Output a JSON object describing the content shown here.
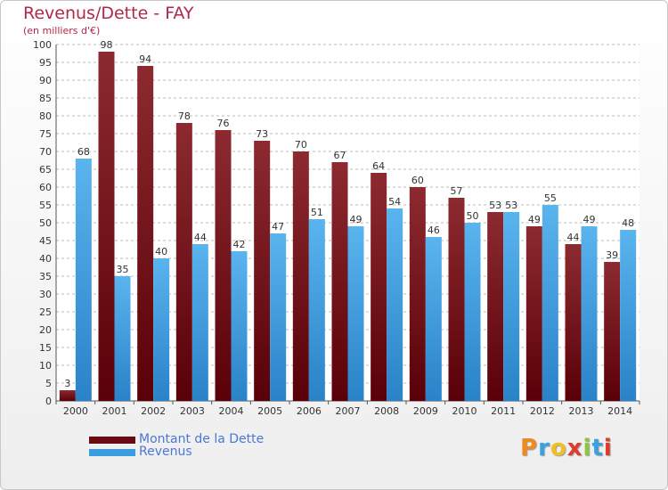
{
  "header": {
    "title": "Revenus/Dette - FAY",
    "subtitle": "(en milliers d'€)"
  },
  "legend": {
    "items": [
      {
        "label": "Montant de la Dette",
        "color": "#6b0a12"
      },
      {
        "label": "Revenus",
        "color": "#3a9de0"
      }
    ]
  },
  "logo": {
    "letters": [
      "P",
      "r",
      "o",
      "x",
      "i",
      "t",
      "i"
    ],
    "colors": [
      "#f08a1c",
      "#3aa0e0",
      "#f0c020",
      "#e03a2a",
      "#8cc63f",
      "#3aa0e0",
      "#e03a2a"
    ]
  },
  "chart_data": {
    "type": "bar",
    "title": "Revenus/Dette - FAY",
    "ylabel": "(en milliers d'€)",
    "xlabel": "",
    "categories": [
      "2000",
      "2001",
      "2002",
      "2003",
      "2004",
      "2005",
      "2006",
      "2007",
      "2008",
      "2009",
      "2010",
      "2011",
      "2012",
      "2013",
      "2014"
    ],
    "series": [
      {
        "name": "Montant de la Dette",
        "color": "#7a1a22",
        "values": [
          3,
          98,
          94,
          78,
          76,
          73,
          70,
          67,
          64,
          60,
          57,
          53,
          49,
          44,
          39
        ]
      },
      {
        "name": "Revenus",
        "color": "#4aaae8",
        "values": [
          68,
          35,
          40,
          44,
          42,
          47,
          51,
          49,
          54,
          46,
          50,
          53,
          55,
          49,
          48
        ]
      }
    ],
    "ylim": [
      0,
      100
    ],
    "yticks": [
      0,
      5,
      10,
      15,
      20,
      25,
      30,
      35,
      40,
      45,
      50,
      55,
      60,
      65,
      70,
      75,
      80,
      85,
      90,
      95,
      100
    ],
    "grid": true,
    "legend_position": "bottom-left"
  }
}
